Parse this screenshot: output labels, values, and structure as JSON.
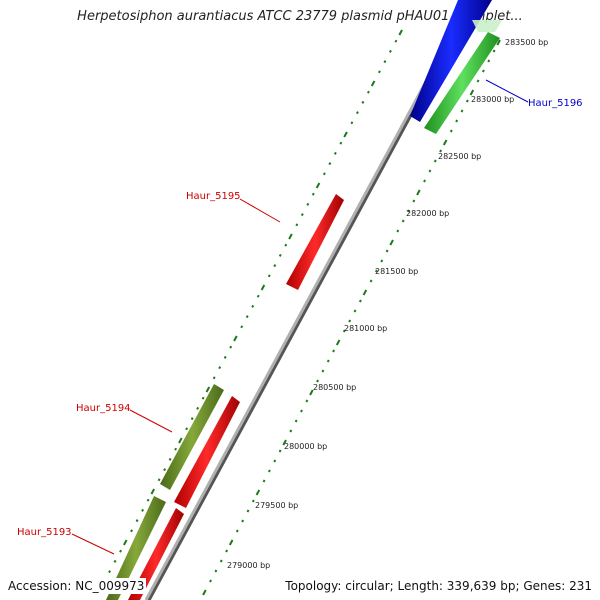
{
  "title": "Herpetosiphon aurantiacus ATCC 23779 plasmid pHAU01, complet...",
  "accession": "Accession: NC_009973",
  "summary": "Topology: circular; Length: 339,639 bp; Genes: 231",
  "tick_labels": [
    "283500 bp",
    "283000 bp",
    "282500 bp",
    "282000 bp",
    "281500 bp",
    "281000 bp",
    "280500 bp",
    "280000 bp",
    "279500 bp",
    "279000 bp"
  ],
  "genes": [
    {
      "label": "Haur_5196",
      "color": "#0000cc"
    },
    {
      "label": "Haur_5195",
      "color": "#cc0000"
    },
    {
      "label": "Haur_5194",
      "color": "#cc0000"
    },
    {
      "label": "Haur_5193",
      "color": "#cc0000"
    }
  ],
  "feature_colors": {
    "blue": "#0a1ae0",
    "green": "#3ac83a",
    "red": "#ff1010",
    "olive": "#6f8f2a",
    "backbone": "#8a8a8a",
    "tick": "#1a7a1a"
  }
}
